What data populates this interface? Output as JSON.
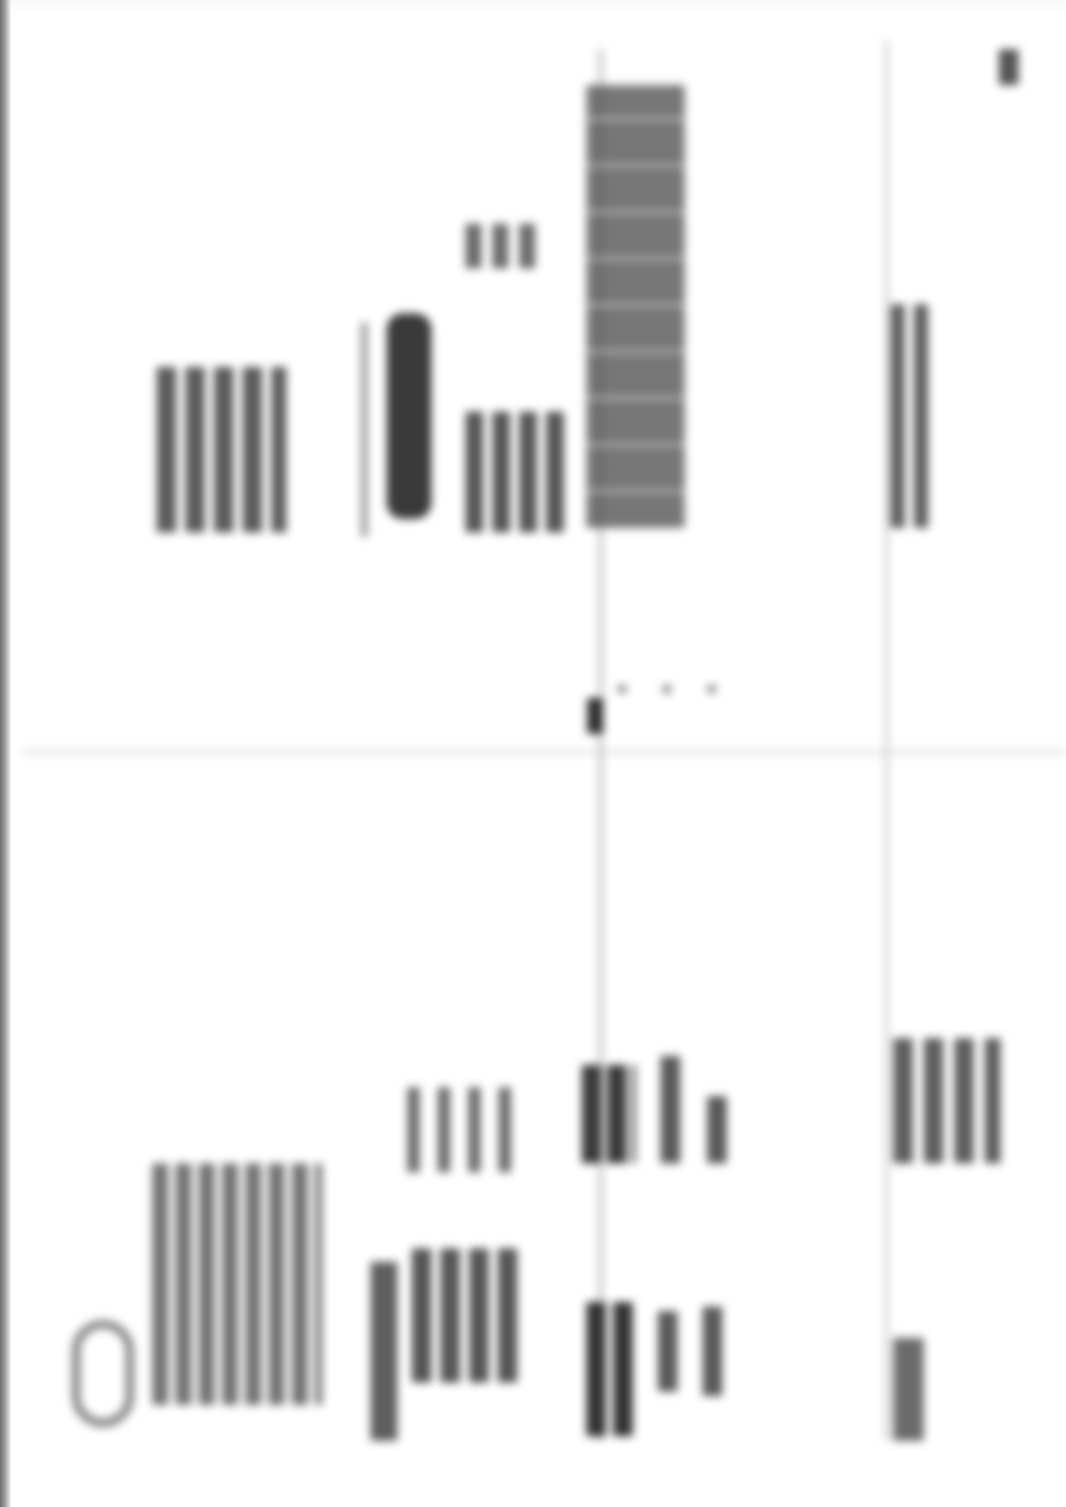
{
  "document": {
    "orientation": "rotated-90",
    "page_marker": ""
  }
}
